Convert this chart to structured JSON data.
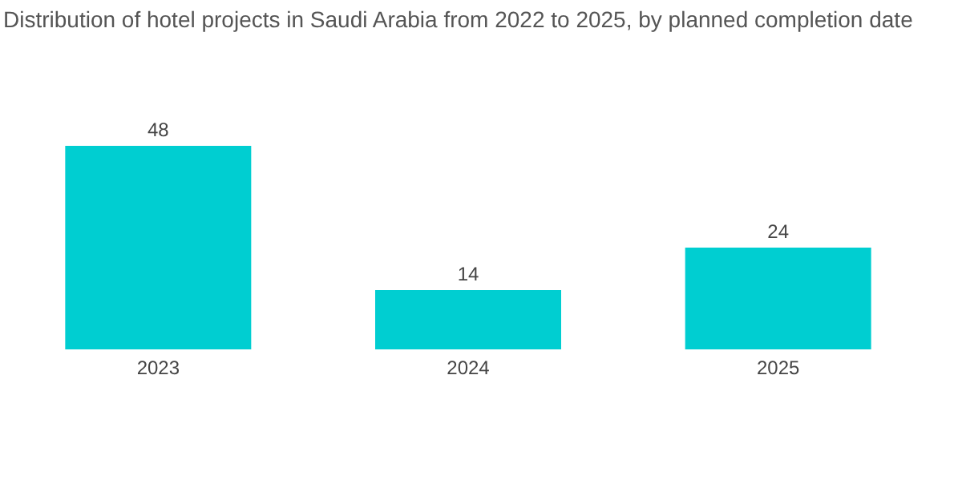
{
  "chart_data": {
    "type": "bar",
    "title": "Distribution of hotel projects in Saudi Arabia from 2022 to 2025, by planned completion date",
    "categories": [
      "2023",
      "2024",
      "2025"
    ],
    "values": [
      48,
      14,
      24
    ],
    "color": "#00ced1",
    "data_labels": true
  }
}
